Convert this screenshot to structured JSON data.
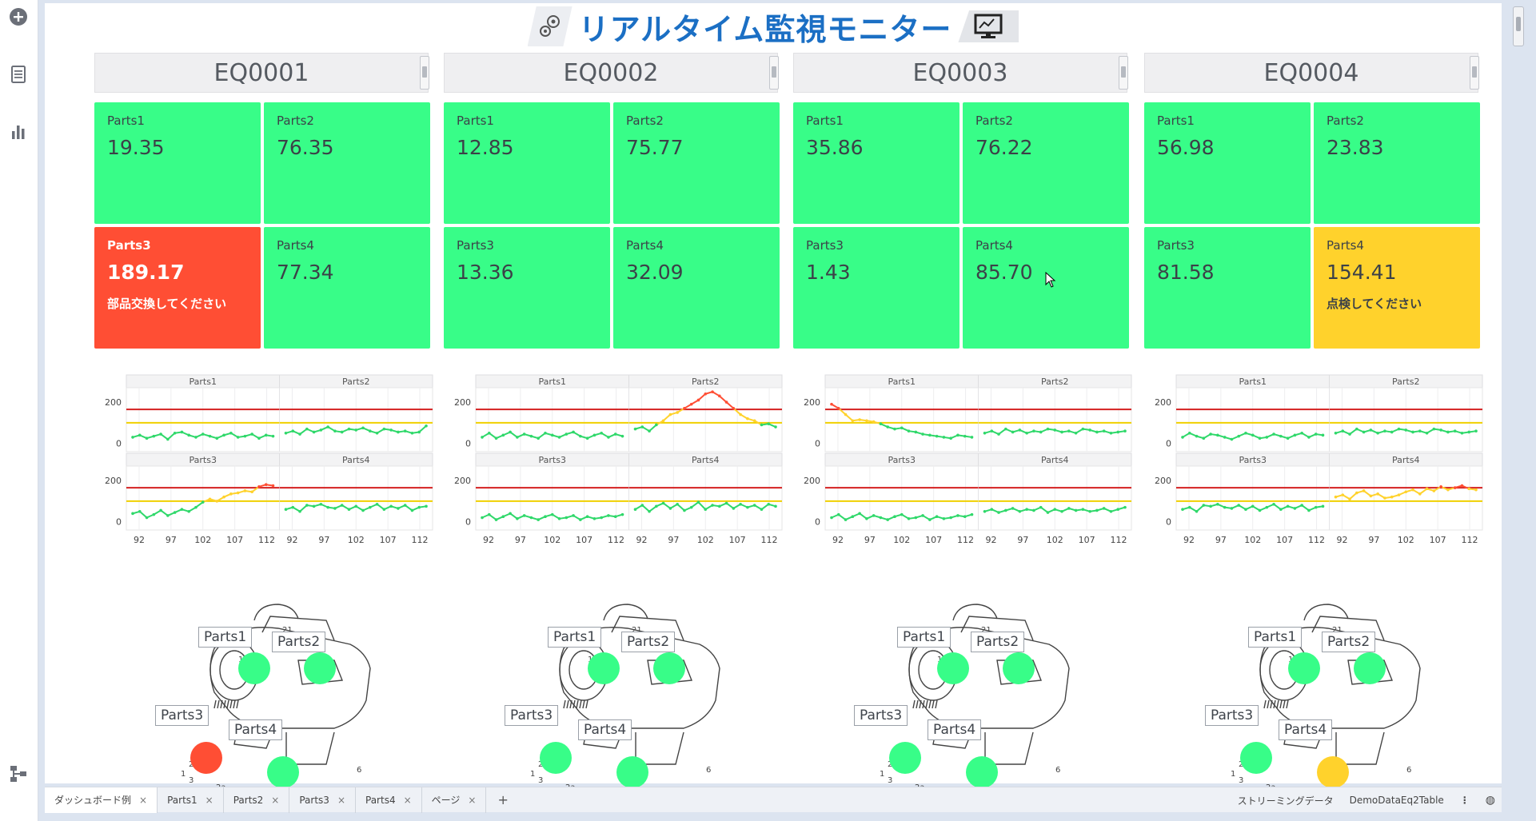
{
  "app": {
    "title": "リアルタイム監視モニター"
  },
  "sidebar": {
    "icons": [
      "plus-circle-icon",
      "document-list-icon",
      "bar-chart-icon",
      "hierarchy-icon"
    ]
  },
  "equipment": [
    {
      "id": "EQ0001",
      "tiles": [
        {
          "label": "Parts1",
          "value": "19.35",
          "status": "ok",
          "message": ""
        },
        {
          "label": "Parts2",
          "value": "76.35",
          "status": "ok",
          "message": ""
        },
        {
          "label": "Parts3",
          "value": "189.17",
          "status": "alarm",
          "message": "部品交換してください"
        },
        {
          "label": "Parts4",
          "value": "77.34",
          "status": "ok",
          "message": ""
        }
      ],
      "marker_status": [
        "ok",
        "ok",
        "alarm",
        "ok"
      ]
    },
    {
      "id": "EQ0002",
      "tiles": [
        {
          "label": "Parts1",
          "value": "12.85",
          "status": "ok",
          "message": ""
        },
        {
          "label": "Parts2",
          "value": "75.77",
          "status": "ok",
          "message": ""
        },
        {
          "label": "Parts3",
          "value": "13.36",
          "status": "ok",
          "message": ""
        },
        {
          "label": "Parts4",
          "value": "32.09",
          "status": "ok",
          "message": ""
        }
      ],
      "marker_status": [
        "ok",
        "ok",
        "ok",
        "ok"
      ]
    },
    {
      "id": "EQ0003",
      "tiles": [
        {
          "label": "Parts1",
          "value": "35.86",
          "status": "ok",
          "message": ""
        },
        {
          "label": "Parts2",
          "value": "76.22",
          "status": "ok",
          "message": ""
        },
        {
          "label": "Parts3",
          "value": "1.43",
          "status": "ok",
          "message": ""
        },
        {
          "label": "Parts4",
          "value": "85.70",
          "status": "ok",
          "message": ""
        }
      ],
      "marker_status": [
        "ok",
        "ok",
        "ok",
        "ok"
      ]
    },
    {
      "id": "EQ0004",
      "tiles": [
        {
          "label": "Parts1",
          "value": "56.98",
          "status": "ok",
          "message": ""
        },
        {
          "label": "Parts2",
          "value": "23.83",
          "status": "ok",
          "message": ""
        },
        {
          "label": "Parts3",
          "value": "81.58",
          "status": "ok",
          "message": ""
        },
        {
          "label": "Parts4",
          "value": "154.41",
          "status": "warn",
          "message": "点検してください"
        }
      ],
      "marker_status": [
        "ok",
        "ok",
        "ok",
        "warn"
      ]
    }
  ],
  "chart_data": [
    {
      "type": "line",
      "title": "EQ0001",
      "x_ticks": [
        92,
        97,
        102,
        107,
        112
      ],
      "y_ticks": [
        0,
        200
      ],
      "ylim": [
        -40,
        270
      ],
      "thresholds": {
        "alarm": 165,
        "warn": 100
      },
      "series": [
        {
          "name": "Parts1",
          "values": [
            30,
            40,
            25,
            35,
            45,
            20,
            50,
            55,
            40,
            30,
            45,
            35,
            25,
            40,
            50,
            30,
            35,
            45,
            25,
            40,
            35
          ]
        },
        {
          "name": "Parts2",
          "values": [
            50,
            60,
            45,
            70,
            55,
            65,
            80,
            60,
            55,
            70,
            65,
            75,
            60,
            50,
            70,
            65,
            55,
            60,
            50,
            55,
            85
          ]
        },
        {
          "name": "Parts3",
          "values": [
            40,
            50,
            20,
            35,
            55,
            30,
            45,
            60,
            50,
            70,
            95,
            110,
            100,
            120,
            135,
            140,
            150,
            145,
            170,
            180,
            175
          ]
        },
        {
          "name": "Parts4",
          "values": [
            60,
            70,
            50,
            80,
            75,
            85,
            70,
            65,
            80,
            60,
            75,
            55,
            70,
            85,
            60,
            75,
            65,
            80,
            55,
            70,
            75
          ]
        }
      ]
    },
    {
      "type": "line",
      "title": "EQ0002",
      "x_ticks": [
        92,
        97,
        102,
        107,
        112
      ],
      "y_ticks": [
        0,
        200
      ],
      "ylim": [
        -40,
        270
      ],
      "thresholds": {
        "alarm": 165,
        "warn": 100
      },
      "series": [
        {
          "name": "Parts1",
          "values": [
            30,
            50,
            25,
            40,
            55,
            30,
            45,
            35,
            25,
            50,
            40,
            30,
            45,
            55,
            35,
            25,
            40,
            50,
            30,
            45,
            35
          ]
        },
        {
          "name": "Parts2",
          "values": [
            70,
            80,
            60,
            90,
            110,
            140,
            150,
            170,
            190,
            210,
            240,
            250,
            230,
            200,
            170,
            140,
            120,
            110,
            90,
            95,
            80
          ]
        },
        {
          "name": "Parts3",
          "values": [
            20,
            35,
            10,
            25,
            40,
            15,
            30,
            20,
            10,
            25,
            35,
            15,
            20,
            30,
            10,
            25,
            15,
            20,
            30,
            25,
            35
          ]
        },
        {
          "name": "Parts4",
          "values": [
            60,
            80,
            50,
            75,
            90,
            65,
            85,
            55,
            70,
            95,
            60,
            80,
            75,
            90,
            65,
            85,
            70,
            80,
            60,
            85,
            75
          ]
        }
      ]
    },
    {
      "type": "line",
      "title": "EQ0003",
      "x_ticks": [
        92,
        97,
        102,
        107,
        112
      ],
      "y_ticks": [
        0,
        200
      ],
      "ylim": [
        -40,
        270
      ],
      "thresholds": {
        "alarm": 165,
        "warn": 100
      },
      "series": [
        {
          "name": "Parts1",
          "values": [
            190,
            170,
            140,
            110,
            115,
            110,
            105,
            95,
            80,
            70,
            75,
            60,
            55,
            45,
            40,
            35,
            30,
            25,
            40,
            35,
            30
          ]
        },
        {
          "name": "Parts2",
          "values": [
            50,
            60,
            45,
            70,
            55,
            65,
            50,
            60,
            55,
            70,
            65,
            55,
            60,
            50,
            70,
            65,
            55,
            60,
            50,
            55,
            60
          ]
        },
        {
          "name": "Parts3",
          "values": [
            20,
            35,
            10,
            25,
            40,
            15,
            30,
            20,
            10,
            25,
            35,
            15,
            20,
            30,
            10,
            25,
            15,
            20,
            30,
            25,
            35
          ]
        },
        {
          "name": "Parts4",
          "values": [
            50,
            60,
            45,
            55,
            65,
            50,
            60,
            55,
            70,
            45,
            60,
            50,
            65,
            55,
            60,
            50,
            55,
            65,
            50,
            60,
            70
          ]
        }
      ]
    },
    {
      "type": "line",
      "title": "EQ0004",
      "x_ticks": [
        92,
        97,
        102,
        107,
        112
      ],
      "y_ticks": [
        0,
        200
      ],
      "ylim": [
        -40,
        270
      ],
      "thresholds": {
        "alarm": 165,
        "warn": 100
      },
      "series": [
        {
          "name": "Parts1",
          "values": [
            30,
            50,
            35,
            25,
            45,
            40,
            30,
            20,
            35,
            50,
            40,
            25,
            30,
            45,
            35,
            25,
            40,
            50,
            30,
            45,
            40
          ]
        },
        {
          "name": "Parts2",
          "values": [
            50,
            60,
            45,
            70,
            55,
            65,
            50,
            60,
            55,
            70,
            65,
            55,
            60,
            50,
            70,
            65,
            55,
            60,
            50,
            55,
            60
          ]
        },
        {
          "name": "Parts3",
          "values": [
            60,
            70,
            50,
            80,
            75,
            85,
            70,
            65,
            80,
            60,
            75,
            55,
            70,
            85,
            60,
            75,
            65,
            80,
            55,
            70,
            75
          ]
        },
        {
          "name": "Parts4",
          "values": [
            120,
            130,
            110,
            140,
            150,
            125,
            135,
            115,
            120,
            130,
            145,
            155,
            135,
            160,
            150,
            170,
            155,
            165,
            175,
            160,
            155
          ]
        }
      ]
    }
  ],
  "diagram": {
    "callouts": [
      "Parts1",
      "Parts2",
      "Parts3",
      "Parts4"
    ]
  },
  "tabs": [
    {
      "label": "ダッシュボード例",
      "active": true
    },
    {
      "label": "Parts1",
      "active": false
    },
    {
      "label": "Parts2",
      "active": false
    },
    {
      "label": "Parts3",
      "active": false
    },
    {
      "label": "Parts4",
      "active": false
    },
    {
      "label": "ページ",
      "active": false
    }
  ],
  "statusbar": {
    "streaming": "ストリーミングデータ",
    "table": "DemoDataEq2Table"
  },
  "colors": {
    "ok": "#38fd88",
    "alarm": "#ff4e34",
    "warn": "#ffd22c",
    "alarm_line": "#d42020",
    "warn_line": "#f0d000"
  }
}
